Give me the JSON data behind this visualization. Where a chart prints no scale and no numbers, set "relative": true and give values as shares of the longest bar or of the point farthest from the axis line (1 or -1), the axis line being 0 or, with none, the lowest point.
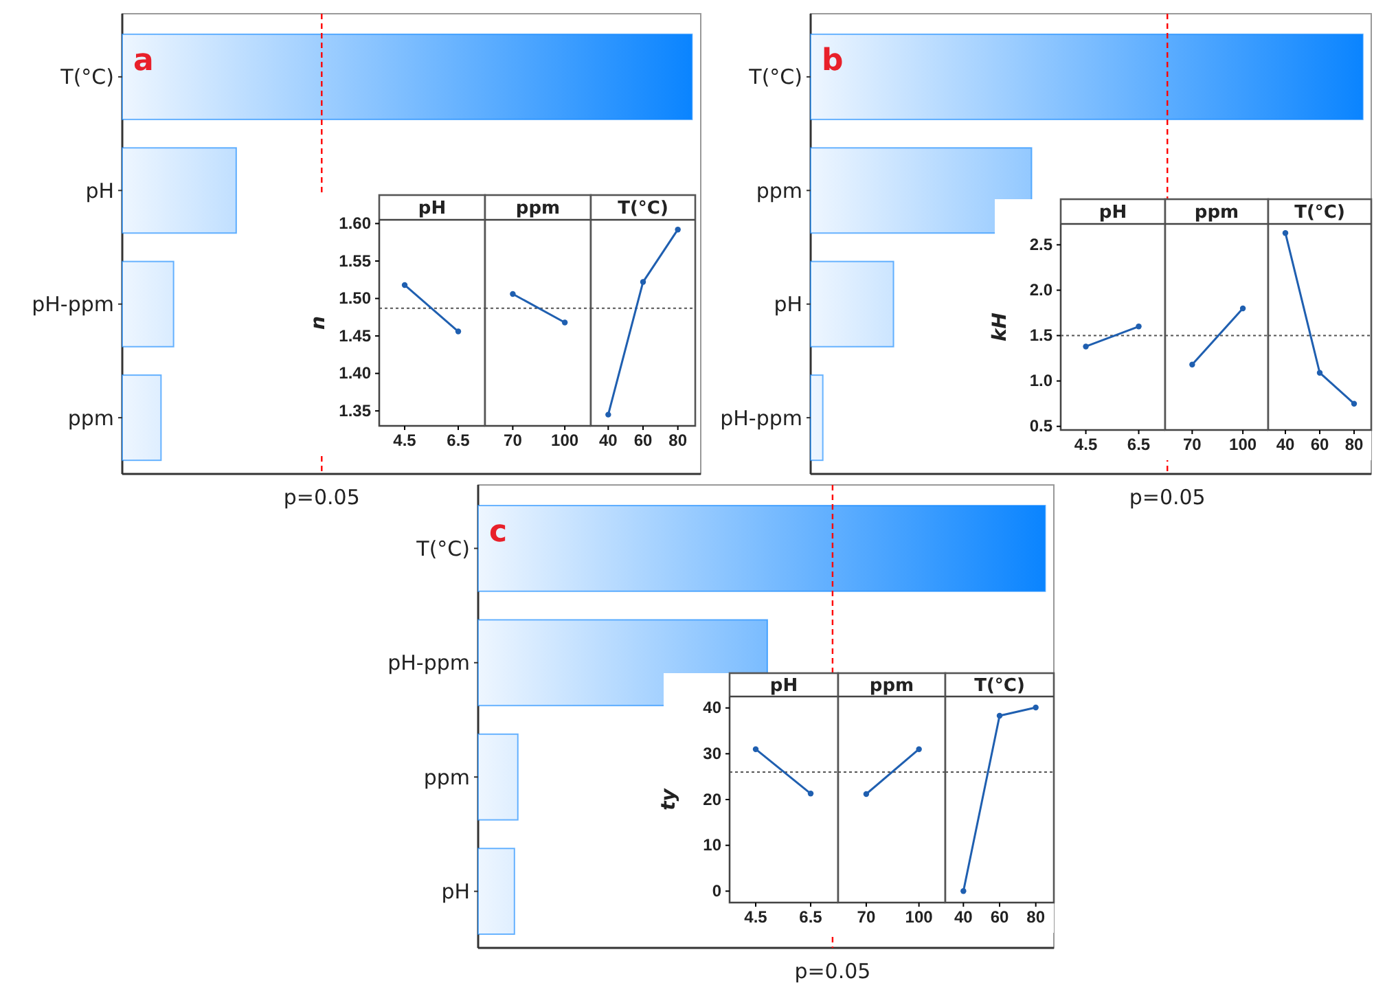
{
  "chart_data": [
    {
      "type": "bar",
      "orientation": "horizontal",
      "relative": true,
      "categories": [
        "T(°C)",
        "pH",
        "pH-ppm",
        "ppm"
      ],
      "values": [
        1,
        0.2,
        0.09,
        0.068
      ],
      "color": "#0a84ff",
      "ref_lines": [
        {
          "axis": "x",
          "value": 0.35,
          "color": "#ff0000",
          "line_style": "dashed"
        }
      ],
      "annotations": [
        "a",
        "p=0.05"
      ]
    },
    {
      "type": "line",
      "title": "pH",
      "ylabel": "n",
      "x": [
        4.5,
        6.5
      ],
      "series": [
        {
          "color": "#1f5fb0",
          "values": [
            1.518,
            1.456
          ]
        }
      ],
      "xlim": [
        3.55,
        7.5
      ],
      "xticks": [
        4.5,
        6.5
      ],
      "ylim": [
        1.33,
        1.605
      ],
      "yticks": [
        {
          "value": 1.35,
          "label": "1.35"
        },
        {
          "value": 1.4,
          "label": "1.40"
        },
        1.45,
        {
          "value": 1.5,
          "label": "1.50"
        },
        1.55,
        {
          "value": 1.6,
          "label": "1.60"
        }
      ],
      "marker": "circle",
      "ref_lines": [
        {
          "axis": "y",
          "value": 1.487,
          "color": "#555555",
          "line_style": "dotted"
        }
      ]
    },
    {
      "type": "line",
      "title": "ppm",
      "x": [
        70,
        100
      ],
      "series": [
        {
          "color": "#1f5fb0",
          "values": [
            1.506,
            1.468
          ]
        }
      ],
      "xlim": [
        54,
        115
      ],
      "xticks": [
        70,
        100
      ],
      "ylim": [
        1.33,
        1.605
      ],
      "tick_labels": "x",
      "marker": "circle",
      "ref_lines": [
        {
          "axis": "y",
          "value": 1.487,
          "color": "#555555",
          "line_style": "dotted"
        }
      ]
    },
    {
      "type": "line",
      "title": "T(°C)",
      "x": [
        40,
        60,
        80
      ],
      "series": [
        {
          "color": "#1f5fb0",
          "values": [
            1.345,
            1.522,
            1.592
          ]
        }
      ],
      "xlim": [
        30,
        90
      ],
      "xticks": [
        40,
        60,
        80
      ],
      "ylim": [
        1.33,
        1.605
      ],
      "tick_labels": "x",
      "marker": "circle",
      "ref_lines": [
        {
          "axis": "y",
          "value": 1.487,
          "color": "#555555",
          "line_style": "dotted"
        }
      ]
    },
    {
      "type": "bar",
      "orientation": "horizontal",
      "relative": true,
      "categories": [
        "T(°C)",
        "ppm",
        "pH",
        "pH-ppm"
      ],
      "values": [
        1,
        0.4,
        0.15,
        0.022
      ],
      "color": "#0a84ff",
      "ref_lines": [
        {
          "axis": "x",
          "value": 0.646,
          "color": "#ff0000",
          "line_style": "dashed"
        }
      ],
      "annotations": [
        "b",
        "p=0.05"
      ]
    },
    {
      "type": "line",
      "title": "pH",
      "ylabel": "kH",
      "x": [
        4.5,
        6.5
      ],
      "series": [
        {
          "color": "#1f5fb0",
          "values": [
            1.38,
            1.6
          ]
        }
      ],
      "xlim": [
        3.55,
        7.5
      ],
      "xticks": [
        4.5,
        6.5
      ],
      "ylim": [
        0.46,
        2.73
      ],
      "yticks": [
        0.5,
        {
          "value": 1,
          "label": "1.0"
        },
        1.5,
        {
          "value": 2,
          "label": "2.0"
        },
        2.5
      ],
      "marker": "circle",
      "ref_lines": [
        {
          "axis": "y",
          "value": 1.5,
          "color": "#555555",
          "line_style": "dotted"
        }
      ]
    },
    {
      "type": "line",
      "title": "ppm",
      "x": [
        70,
        100
      ],
      "series": [
        {
          "color": "#1f5fb0",
          "values": [
            1.18,
            1.8
          ]
        }
      ],
      "xlim": [
        54,
        115
      ],
      "xticks": [
        70,
        100
      ],
      "ylim": [
        0.46,
        2.73
      ],
      "tick_labels": "x",
      "marker": "circle",
      "ref_lines": [
        {
          "axis": "y",
          "value": 1.5,
          "color": "#555555",
          "line_style": "dotted"
        }
      ]
    },
    {
      "type": "line",
      "title": "T(°C)",
      "x": [
        40,
        60,
        80
      ],
      "series": [
        {
          "color": "#1f5fb0",
          "values": [
            2.63,
            1.09,
            0.75
          ]
        }
      ],
      "xlim": [
        30,
        90
      ],
      "xticks": [
        40,
        60,
        80
      ],
      "ylim": [
        0.46,
        2.73
      ],
      "tick_labels": "x",
      "marker": "circle",
      "ref_lines": [
        {
          "axis": "y",
          "value": 1.5,
          "color": "#555555",
          "line_style": "dotted"
        }
      ]
    },
    {
      "type": "bar",
      "orientation": "horizontal",
      "relative": true,
      "categories": [
        "T(°C)",
        "pH-ppm",
        "ppm",
        "pH"
      ],
      "values": [
        1,
        0.51,
        0.07,
        0.064
      ],
      "color": "#0a84ff",
      "ref_lines": [
        {
          "axis": "x",
          "value": 0.625,
          "color": "#ff0000",
          "line_style": "dashed"
        }
      ],
      "annotations": [
        "c",
        "p=0.05"
      ]
    },
    {
      "type": "line",
      "title": "pH",
      "ylabel": "ty",
      "x": [
        4.5,
        6.5
      ],
      "series": [
        {
          "color": "#1f5fb0",
          "values": [
            31,
            21.3
          ]
        }
      ],
      "xlim": [
        3.55,
        7.5
      ],
      "xticks": [
        4.5,
        6.5
      ],
      "ylim": [
        -2.5,
        42.5
      ],
      "yticks": [
        0,
        10,
        20,
        30,
        40
      ],
      "marker": "circle",
      "ref_lines": [
        {
          "axis": "y",
          "value": 26,
          "color": "#555555",
          "line_style": "dotted"
        }
      ]
    },
    {
      "type": "line",
      "title": "ppm",
      "x": [
        70,
        100
      ],
      "series": [
        {
          "color": "#1f5fb0",
          "values": [
            21.2,
            31
          ]
        }
      ],
      "xlim": [
        54,
        115
      ],
      "xticks": [
        70,
        100
      ],
      "ylim": [
        -2.5,
        42.5
      ],
      "tick_labels": "x",
      "marker": "circle",
      "ref_lines": [
        {
          "axis": "y",
          "value": 26,
          "color": "#555555",
          "line_style": "dotted"
        }
      ]
    },
    {
      "type": "line",
      "title": "T(°C)",
      "x": [
        40,
        60,
        80
      ],
      "series": [
        {
          "color": "#1f5fb0",
          "values": [
            0,
            38.3,
            40.1
          ]
        }
      ],
      "xlim": [
        30,
        90
      ],
      "xticks": [
        40,
        60,
        80
      ],
      "ylim": [
        -2.5,
        42.5
      ],
      "tick_labels": "x",
      "marker": "circle",
      "ref_lines": [
        {
          "axis": "y",
          "value": 26,
          "color": "#555555",
          "line_style": "dotted"
        }
      ]
    }
  ]
}
